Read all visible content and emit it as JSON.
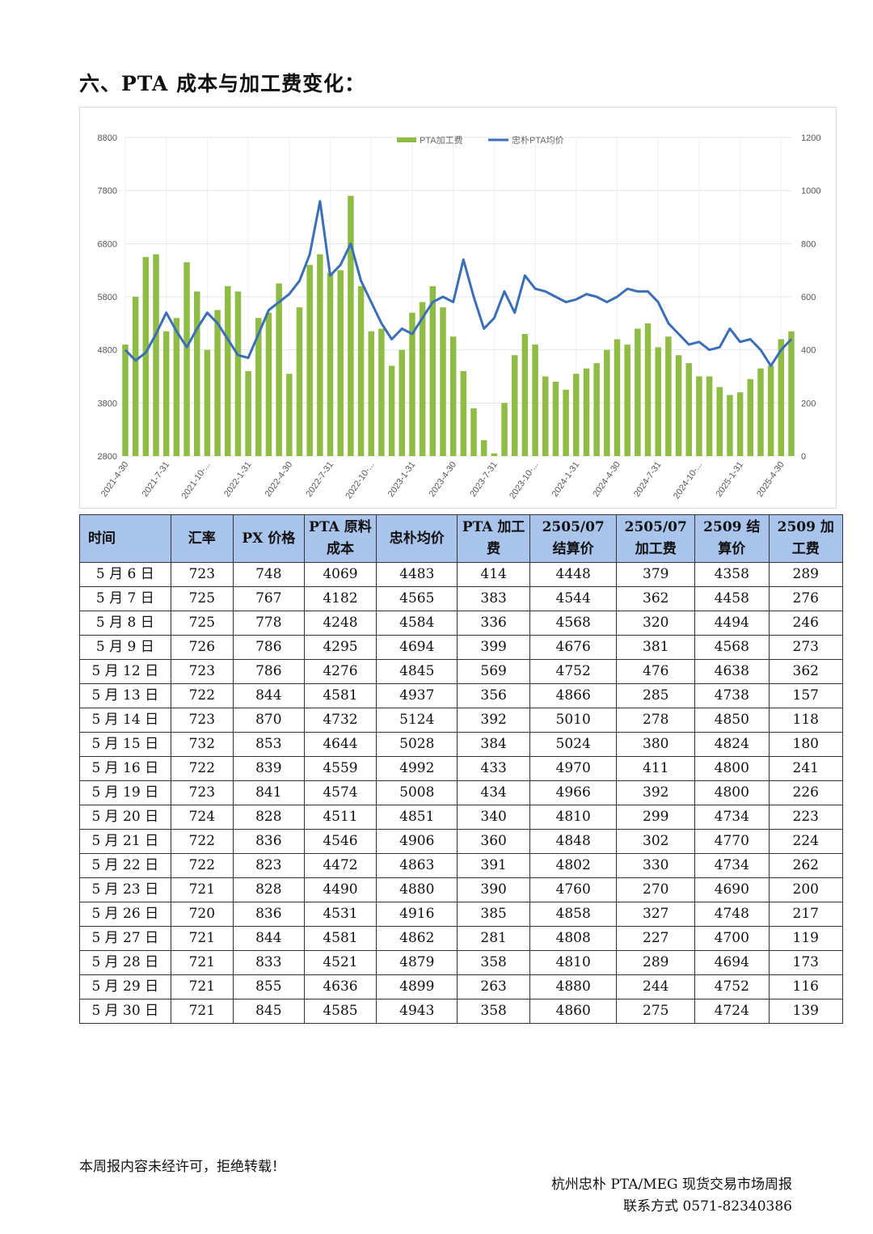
{
  "section_title": "六、PTA 成本与加工费变化：",
  "chart_data": {
    "type": "bar+line",
    "legend": {
      "position": "top-center",
      "series": [
        "PTA加工费",
        "忠朴PTA均价"
      ]
    },
    "colors": {
      "bar": "#8fbc45",
      "line": "#3a6fb8",
      "grid": "#e4e4e4"
    },
    "x_ticks": [
      "2021-4-30",
      "2021-7-31",
      "2021-10-...",
      "2022-1-31",
      "2022-4-30",
      "2022-7-31",
      "2022-10-...",
      "2023-1-31",
      "2023-4-30",
      "2023-7-31",
      "2023-10-...",
      "2024-1-31",
      "2024-4-30",
      "2024-7-31",
      "2024-10-...",
      "2025-1-31",
      "2025-4-30"
    ],
    "y_left": {
      "range": [
        2800,
        8800
      ],
      "ticks": [
        "2800",
        "3800",
        "4800",
        "5800",
        "6800",
        "7800",
        "8800"
      ]
    },
    "y_right": {
      "range": [
        0,
        1200
      ],
      "ticks": [
        "0",
        "200",
        "400",
        "600",
        "800",
        "1000",
        "1200"
      ]
    },
    "series": [
      {
        "name": "PTA加工费",
        "axis": "right",
        "type": "bar",
        "x": [
          0,
          0.25,
          0.5,
          0.75,
          1,
          1.25,
          1.5,
          1.75,
          2,
          2.25,
          2.5,
          2.75,
          3,
          3.25,
          3.5,
          3.75,
          4,
          4.25,
          4.5,
          4.75,
          5,
          5.25,
          5.5,
          5.75,
          6,
          6.25,
          6.5,
          6.75,
          7,
          7.25,
          7.5,
          7.75,
          8,
          8.25,
          8.5,
          8.75,
          9,
          9.25,
          9.5,
          9.75,
          10,
          10.25,
          10.5,
          10.75,
          11,
          11.25,
          11.5,
          11.75,
          12,
          12.25,
          12.5,
          12.75,
          13,
          13.25,
          13.5,
          13.75,
          14,
          14.25,
          14.5,
          14.75,
          15,
          15.25,
          15.5,
          15.75,
          16,
          16.25
        ],
        "values": [
          420,
          600,
          750,
          760,
          470,
          520,
          730,
          620,
          400,
          550,
          640,
          620,
          320,
          520,
          540,
          650,
          310,
          560,
          720,
          760,
          690,
          700,
          980,
          640,
          470,
          480,
          340,
          400,
          540,
          580,
          640,
          560,
          450,
          320,
          180,
          60,
          10,
          200,
          380,
          460,
          420,
          300,
          280,
          250,
          310,
          330,
          350,
          400,
          440,
          420,
          480,
          500,
          410,
          450,
          380,
          350,
          300,
          300,
          260,
          230,
          240,
          290,
          330,
          340,
          440,
          470
        ]
      },
      {
        "name": "忠朴PTA均价",
        "axis": "left",
        "type": "line",
        "x": [
          0,
          0.25,
          0.5,
          0.75,
          1,
          1.25,
          1.5,
          1.75,
          2,
          2.25,
          2.5,
          2.75,
          3,
          3.25,
          3.5,
          3.75,
          4,
          4.25,
          4.5,
          4.75,
          5,
          5.25,
          5.5,
          5.75,
          6,
          6.25,
          6.5,
          6.75,
          7,
          7.25,
          7.5,
          7.75,
          8,
          8.25,
          8.5,
          8.75,
          9,
          9.25,
          9.5,
          9.75,
          10,
          10.25,
          10.5,
          10.75,
          11,
          11.25,
          11.5,
          11.75,
          12,
          12.25,
          12.5,
          12.75,
          13,
          13.25,
          13.5,
          13.75,
          14,
          14.25,
          14.5,
          14.75,
          15,
          15.25,
          15.5,
          15.75,
          16,
          16.25
        ],
        "values": [
          4800,
          4600,
          4750,
          5100,
          5500,
          5150,
          4850,
          5200,
          5500,
          5300,
          5000,
          4700,
          4650,
          5100,
          5550,
          5700,
          5850,
          6100,
          6600,
          7600,
          6200,
          6400,
          6800,
          6100,
          5700,
          5300,
          5000,
          5200,
          5100,
          5400,
          5700,
          5800,
          5700,
          6500,
          5800,
          5200,
          5400,
          5900,
          5500,
          6200,
          5950,
          5900,
          5800,
          5700,
          5750,
          5850,
          5800,
          5700,
          5800,
          5950,
          5900,
          5900,
          5700,
          5300,
          5100,
          4900,
          4950,
          4800,
          4850,
          5200,
          4950,
          5000,
          4800,
          4500,
          4800,
          5000
        ]
      }
    ]
  },
  "table": {
    "headers": [
      "时间",
      "汇率",
      "PX 价格",
      "PTA 原料成本",
      "忠朴均价",
      "PTA 加工费",
      "2505/07 结算价",
      "2505/07 加工费",
      "2509 结算价",
      "2509 加工费"
    ],
    "rows": [
      [
        "5 月 6 日",
        "723",
        "748",
        "4069",
        "4483",
        "414",
        "4448",
        "379",
        "4358",
        "289"
      ],
      [
        "5 月 7 日",
        "725",
        "767",
        "4182",
        "4565",
        "383",
        "4544",
        "362",
        "4458",
        "276"
      ],
      [
        "5 月 8 日",
        "725",
        "778",
        "4248",
        "4584",
        "336",
        "4568",
        "320",
        "4494",
        "246"
      ],
      [
        "5 月 9 日",
        "726",
        "786",
        "4295",
        "4694",
        "399",
        "4676",
        "381",
        "4568",
        "273"
      ],
      [
        "5 月 12 日",
        "723",
        "786",
        "4276",
        "4845",
        "569",
        "4752",
        "476",
        "4638",
        "362"
      ],
      [
        "5 月 13 日",
        "722",
        "844",
        "4581",
        "4937",
        "356",
        "4866",
        "285",
        "4738",
        "157"
      ],
      [
        "5 月 14 日",
        "723",
        "870",
        "4732",
        "5124",
        "392",
        "5010",
        "278",
        "4850",
        "118"
      ],
      [
        "5 月 15 日",
        "732",
        "853",
        "4644",
        "5028",
        "384",
        "5024",
        "380",
        "4824",
        "180"
      ],
      [
        "5 月 16 日",
        "722",
        "839",
        "4559",
        "4992",
        "433",
        "4970",
        "411",
        "4800",
        "241"
      ],
      [
        "5 月 19 日",
        "723",
        "841",
        "4574",
        "5008",
        "434",
        "4966",
        "392",
        "4800",
        "226"
      ],
      [
        "5 月 20 日",
        "724",
        "828",
        "4511",
        "4851",
        "340",
        "4810",
        "299",
        "4734",
        "223"
      ],
      [
        "5 月 21 日",
        "722",
        "836",
        "4546",
        "4906",
        "360",
        "4848",
        "302",
        "4770",
        "224"
      ],
      [
        "5 月 22 日",
        "722",
        "823",
        "4472",
        "4863",
        "391",
        "4802",
        "330",
        "4734",
        "262"
      ],
      [
        "5 月 23 日",
        "721",
        "828",
        "4490",
        "4880",
        "390",
        "4760",
        "270",
        "4690",
        "200"
      ],
      [
        "5 月 26 日",
        "720",
        "836",
        "4531",
        "4916",
        "385",
        "4858",
        "327",
        "4748",
        "217"
      ],
      [
        "5 月 27 日",
        "721",
        "844",
        "4581",
        "4862",
        "281",
        "4808",
        "227",
        "4700",
        "119"
      ],
      [
        "5 月 28 日",
        "721",
        "833",
        "4521",
        "4879",
        "358",
        "4810",
        "289",
        "4694",
        "173"
      ],
      [
        "5 月 29 日",
        "721",
        "855",
        "4636",
        "4899",
        "263",
        "4880",
        "244",
        "4752",
        "116"
      ],
      [
        "5 月 30 日",
        "721",
        "845",
        "4585",
        "4943",
        "358",
        "4860",
        "275",
        "4724",
        "139"
      ]
    ]
  },
  "footer": {
    "note": "本周报内容未经许可，拒绝转载！",
    "org": "杭州忠朴 PTA/MEG 现货交易市场周报",
    "contact": "联系方式 0571-82340386"
  }
}
